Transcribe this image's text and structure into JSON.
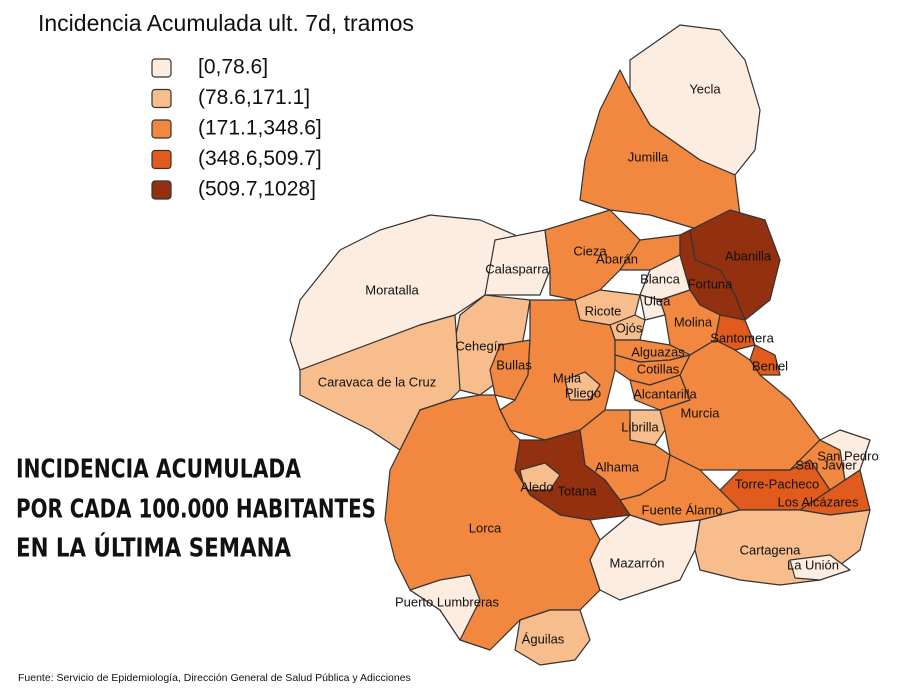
{
  "title": "Incidencia Acumulada ult. 7d, tramos",
  "legend": [
    {
      "label": "[0,78.6]",
      "color": "#fdede0"
    },
    {
      "label": "(78.6,171.1]",
      "color": "#f8bd8c"
    },
    {
      "label": "(171.1,348.6]",
      "color": "#f2883f"
    },
    {
      "label": "(348.6,509.7]",
      "color": "#e05b1d"
    },
    {
      "label": "(509.7,1028]",
      "color": "#93300f"
    }
  ],
  "municipalities": [
    {
      "name": "Yecla",
      "class": 0
    },
    {
      "name": "Jumilla",
      "class": 2
    },
    {
      "name": "Moratalla",
      "class": 0
    },
    {
      "name": "Calasparra",
      "class": 0
    },
    {
      "name": "Cieza",
      "class": 2
    },
    {
      "name": "Abarán",
      "class": 2
    },
    {
      "name": "Blanca",
      "class": 0
    },
    {
      "name": "Abanilla",
      "class": 4
    },
    {
      "name": "Fortuna",
      "class": 4
    },
    {
      "name": "Ricote",
      "class": 1
    },
    {
      "name": "Ulea",
      "class": 0
    },
    {
      "name": "Ojós",
      "class": 1
    },
    {
      "name": "Molina",
      "class": 2
    },
    {
      "name": "Santomera",
      "class": 3
    },
    {
      "name": "Beniel",
      "class": 3
    },
    {
      "name": "Cehegín",
      "class": 1
    },
    {
      "name": "Bullas",
      "class": 2
    },
    {
      "name": "Caravaca de la Cruz",
      "class": 1
    },
    {
      "name": "Mula",
      "class": 2
    },
    {
      "name": "Pliego",
      "class": 1
    },
    {
      "name": "Alguazas",
      "class": 2
    },
    {
      "name": "Cotillas",
      "class": 2
    },
    {
      "name": "Alcantarilla",
      "class": 2
    },
    {
      "name": "Murcia",
      "class": 2
    },
    {
      "name": "Librilla",
      "class": 1
    },
    {
      "name": "Alhama",
      "class": 2
    },
    {
      "name": "Totana",
      "class": 4
    },
    {
      "name": "Aledo",
      "class": 1
    },
    {
      "name": "Lorca",
      "class": 2
    },
    {
      "name": "Puerto Lumbreras",
      "class": 0
    },
    {
      "name": "Águilas",
      "class": 1
    },
    {
      "name": "Fuente Álamo",
      "class": 2
    },
    {
      "name": "Mazarrón",
      "class": 0
    },
    {
      "name": "Torre-Pacheco",
      "class": 3
    },
    {
      "name": "San Javier",
      "class": 2
    },
    {
      "name": "San Pedro",
      "class": 0
    },
    {
      "name": "Los Alcázares",
      "class": 3
    },
    {
      "name": "Cartagena",
      "class": 1
    },
    {
      "name": "La Unión",
      "class": 0
    }
  ],
  "caption": [
    "INCIDENCIA ACUMULADA",
    "POR CADA 100.000 HABITANTES",
    "EN LA ÚLTIMA SEMANA"
  ],
  "source": "Fuente: Servicio de Epidemiología, Dirección General de Salud Pública y Adicciones"
}
